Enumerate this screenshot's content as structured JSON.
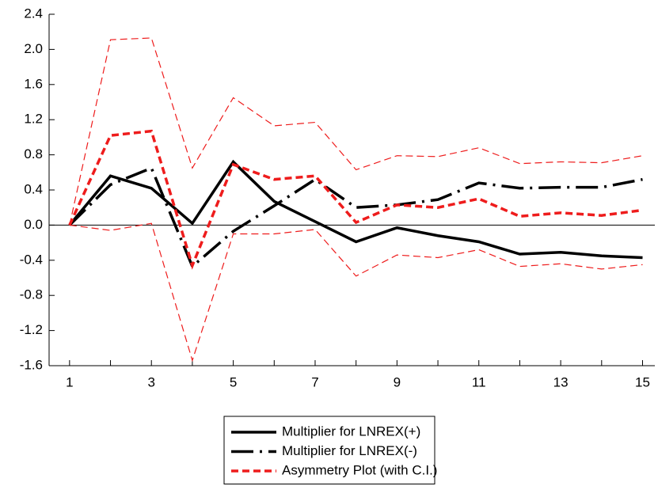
{
  "chart_data": {
    "type": "line",
    "x": [
      1,
      2,
      3,
      4,
      5,
      6,
      7,
      8,
      9,
      10,
      11,
      12,
      13,
      14,
      15
    ],
    "xlim": [
      0.5,
      15.3
    ],
    "xticks": [
      1,
      3,
      5,
      7,
      9,
      11,
      13,
      15
    ],
    "xminor_ticks": [
      2,
      4,
      6,
      8,
      10,
      12,
      14
    ],
    "ylim": [
      -1.6,
      2.4
    ],
    "yticks": [
      {
        "value": -1.6,
        "label": "-1.6"
      },
      {
        "value": -1.2,
        "label": "-1.2"
      },
      {
        "value": -0.8,
        "label": "-0.8"
      },
      {
        "value": -0.4,
        "label": "-0.4"
      },
      {
        "value": 0,
        "label": "0.0"
      },
      {
        "value": 0.4,
        "label": "0.4"
      },
      {
        "value": 0.8,
        "label": "0.8"
      },
      {
        "value": 1.2,
        "label": "1.2"
      },
      {
        "value": 1.6,
        "label": "1.6"
      },
      {
        "value": 2,
        "label": "2.0"
      },
      {
        "value": 2.4,
        "label": "2.4"
      }
    ],
    "zero_line": true,
    "legend": "bottom",
    "series": [
      {
        "name": "Multiplier for LNREX(+)",
        "color": "#000000",
        "line_style": "solid",
        "weight": "thick",
        "values": [
          0,
          0.56,
          0.42,
          0.02,
          0.72,
          0.27,
          0.04,
          -0.19,
          -0.03,
          -0.12,
          -0.19,
          -0.33,
          -0.31,
          -0.35,
          -0.37
        ]
      },
      {
        "name": "Multiplier for LNREX(-)",
        "color": "#000000",
        "line_style": "longdash",
        "weight": "thick",
        "values": [
          0,
          0.46,
          0.65,
          -0.47,
          -0.07,
          0.22,
          0.52,
          0.2,
          0.23,
          0.29,
          0.48,
          0.42,
          0.43,
          0.43,
          0.52
        ]
      },
      {
        "name": "Asymmetry Plot (with C.I.)",
        "color": "#ee1c1c",
        "line_style": "dash",
        "weight": "thick",
        "values": [
          0,
          1.02,
          1.07,
          -0.46,
          0.69,
          0.52,
          0.56,
          0.03,
          0.23,
          0.2,
          0.3,
          0.1,
          0.14,
          0.11,
          0.17
        ]
      },
      {
        "color": "#ee1c1c",
        "line_style": "dash",
        "weight": "thin",
        "values": [
          0,
          2.11,
          2.13,
          0.65,
          1.45,
          1.13,
          1.17,
          0.63,
          0.79,
          0.78,
          0.88,
          0.7,
          0.72,
          0.71,
          0.79
        ]
      },
      {
        "color": "#ee1c1c",
        "line_style": "dash",
        "weight": "thin",
        "values": [
          0,
          -0.06,
          0.02,
          -1.54,
          -0.1,
          -0.1,
          -0.05,
          -0.58,
          -0.34,
          -0.37,
          -0.28,
          -0.47,
          -0.44,
          -0.5,
          -0.45
        ]
      }
    ]
  }
}
